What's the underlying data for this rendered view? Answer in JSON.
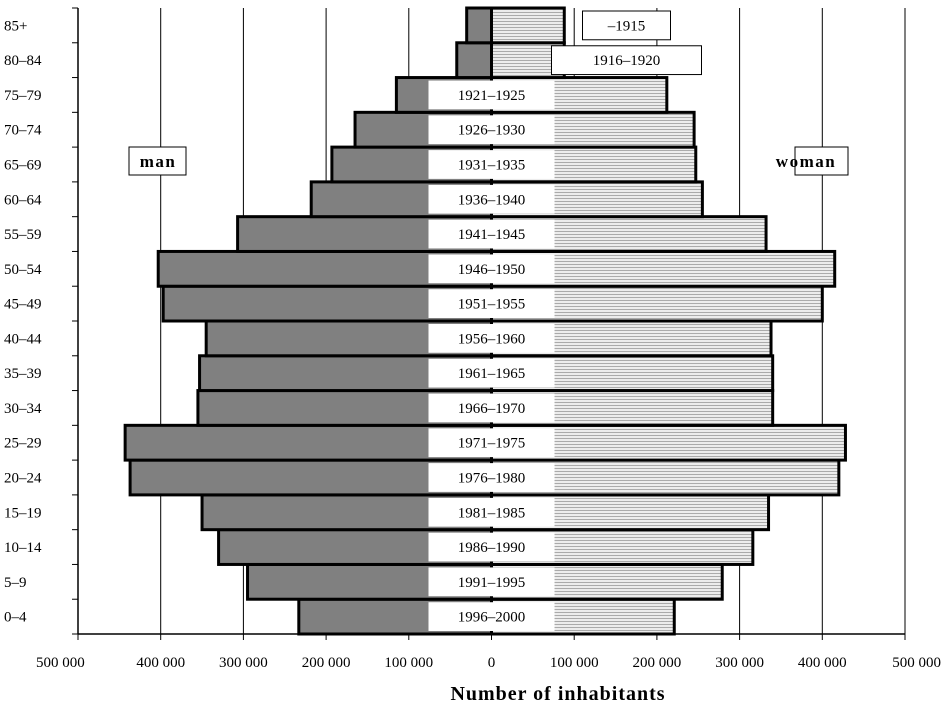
{
  "chart_data": {
    "type": "bar",
    "orientation": "horizontal",
    "categories": [
      "0–4",
      "5–9",
      "10–14",
      "15–19",
      "20–24",
      "25–29",
      "30–34",
      "35–39",
      "40–44",
      "45–49",
      "50–54",
      "55–59",
      "60–64",
      "65–69",
      "70–74",
      "75–79",
      "80–84",
      "85+"
    ],
    "cohort_labels": [
      "1996–2000",
      "1991–1995",
      "1986–1990",
      "1981–1985",
      "1976–1980",
      "1971–1975",
      "1966–1970",
      "1961–1965",
      "1956–1960",
      "1951–1955",
      "1946–1950",
      "1941–1945",
      "1936–1940",
      "1931–1935",
      "1926–1930",
      "1921–1925",
      "1916–1920",
      "–1915"
    ],
    "series": [
      {
        "name": "man",
        "color": "#808080",
        "values": [
          233000,
          295000,
          330000,
          350000,
          437000,
          443000,
          355000,
          353000,
          345000,
          397000,
          403000,
          307000,
          218000,
          193000,
          165000,
          115000,
          42000,
          30000
        ]
      },
      {
        "name": "woman",
        "color": "#d9d9d9",
        "values": [
          221000,
          279000,
          316000,
          335000,
          420000,
          428000,
          340000,
          340000,
          338000,
          400000,
          415000,
          332000,
          255000,
          247000,
          245000,
          212000,
          88000,
          88000
        ]
      }
    ],
    "xlabel": "Number of inhabitants",
    "xlim": [
      -500000,
      500000
    ],
    "xticks": [
      "500 000",
      "400 000",
      "300 000",
      "200 000",
      "100 000",
      "0",
      "100 000",
      "200 000",
      "300 000",
      "400 000",
      "500 000"
    ],
    "grid": "vertical",
    "legend": "man left, woman right"
  },
  "labels": {
    "man": "man",
    "woman": "woman"
  }
}
